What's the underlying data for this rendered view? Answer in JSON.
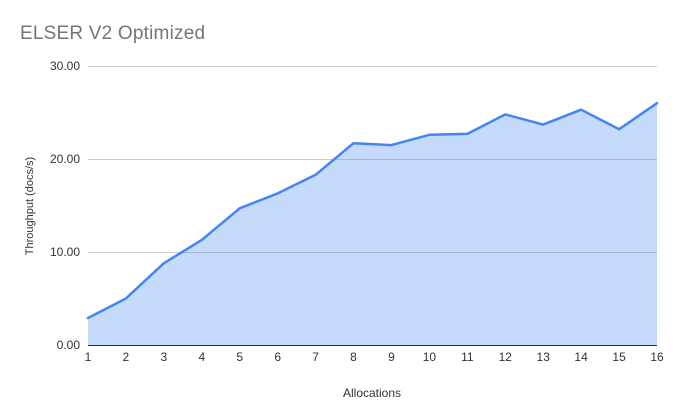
{
  "chart_data": {
    "type": "area",
    "title": "ELSER V2 Optimized",
    "xlabel": "Allocations",
    "ylabel": "Throughput (docs/s)",
    "categories": [
      "1",
      "2",
      "3",
      "4",
      "5",
      "6",
      "7",
      "8",
      "9",
      "10",
      "11",
      "12",
      "13",
      "14",
      "15",
      "16"
    ],
    "series": [
      {
        "name": "Throughput (docs/s)",
        "values": [
          2.9,
          5.0,
          8.8,
          11.3,
          14.7,
          16.3,
          18.3,
          21.7,
          21.5,
          22.6,
          22.7,
          24.8,
          23.7,
          25.3,
          23.2,
          26.0
        ]
      }
    ],
    "ylim": [
      0,
      30
    ],
    "y_ticks": [
      {
        "value": 0,
        "label": "0.00"
      },
      {
        "value": 10,
        "label": "10.00"
      },
      {
        "value": 20,
        "label": "20.00"
      },
      {
        "value": 30,
        "label": "30.00"
      }
    ],
    "grid": true,
    "legend_position": "none",
    "colors": {
      "line": "#4285f4",
      "fill": "rgba(66,133,244,0.30)",
      "gridline": "#cccccc",
      "axis_line": "#333333",
      "title_text": "#757575",
      "tick_text": "#333333",
      "axis_title_text": "#333333",
      "background": "#ffffff"
    }
  }
}
